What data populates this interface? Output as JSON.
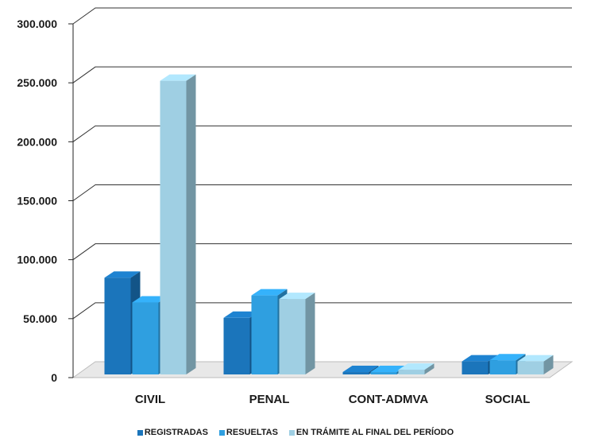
{
  "chart_data": {
    "type": "bar",
    "categories": [
      "CIVIL",
      "PENAL",
      "CONT-ADMVA",
      "SOCIAL"
    ],
    "series": [
      {
        "name": "REGISTRADAS",
        "values": [
          82000,
          48000,
          2000,
          11000
        ],
        "color": "#1b75bb"
      },
      {
        "name": "RESUELTAS",
        "values": [
          61000,
          67000,
          2000,
          12000
        ],
        "color": "#2f9fe0"
      },
      {
        "name": "EN TRÁMITE AL FINAL DEL PERÍODO",
        "values": [
          249000,
          64000,
          4000,
          11000
        ],
        "color": "#9fcfe3"
      }
    ],
    "ylim": [
      0,
      300000
    ],
    "yticks": [
      "0",
      "50.000",
      "100.000",
      "150.000",
      "200.000",
      "250.000",
      "300.000"
    ],
    "ytick_values": [
      0,
      50000,
      100000,
      150000,
      200000,
      250000,
      300000
    ],
    "grid": true,
    "legend_position": "bottom",
    "three_d": true
  }
}
